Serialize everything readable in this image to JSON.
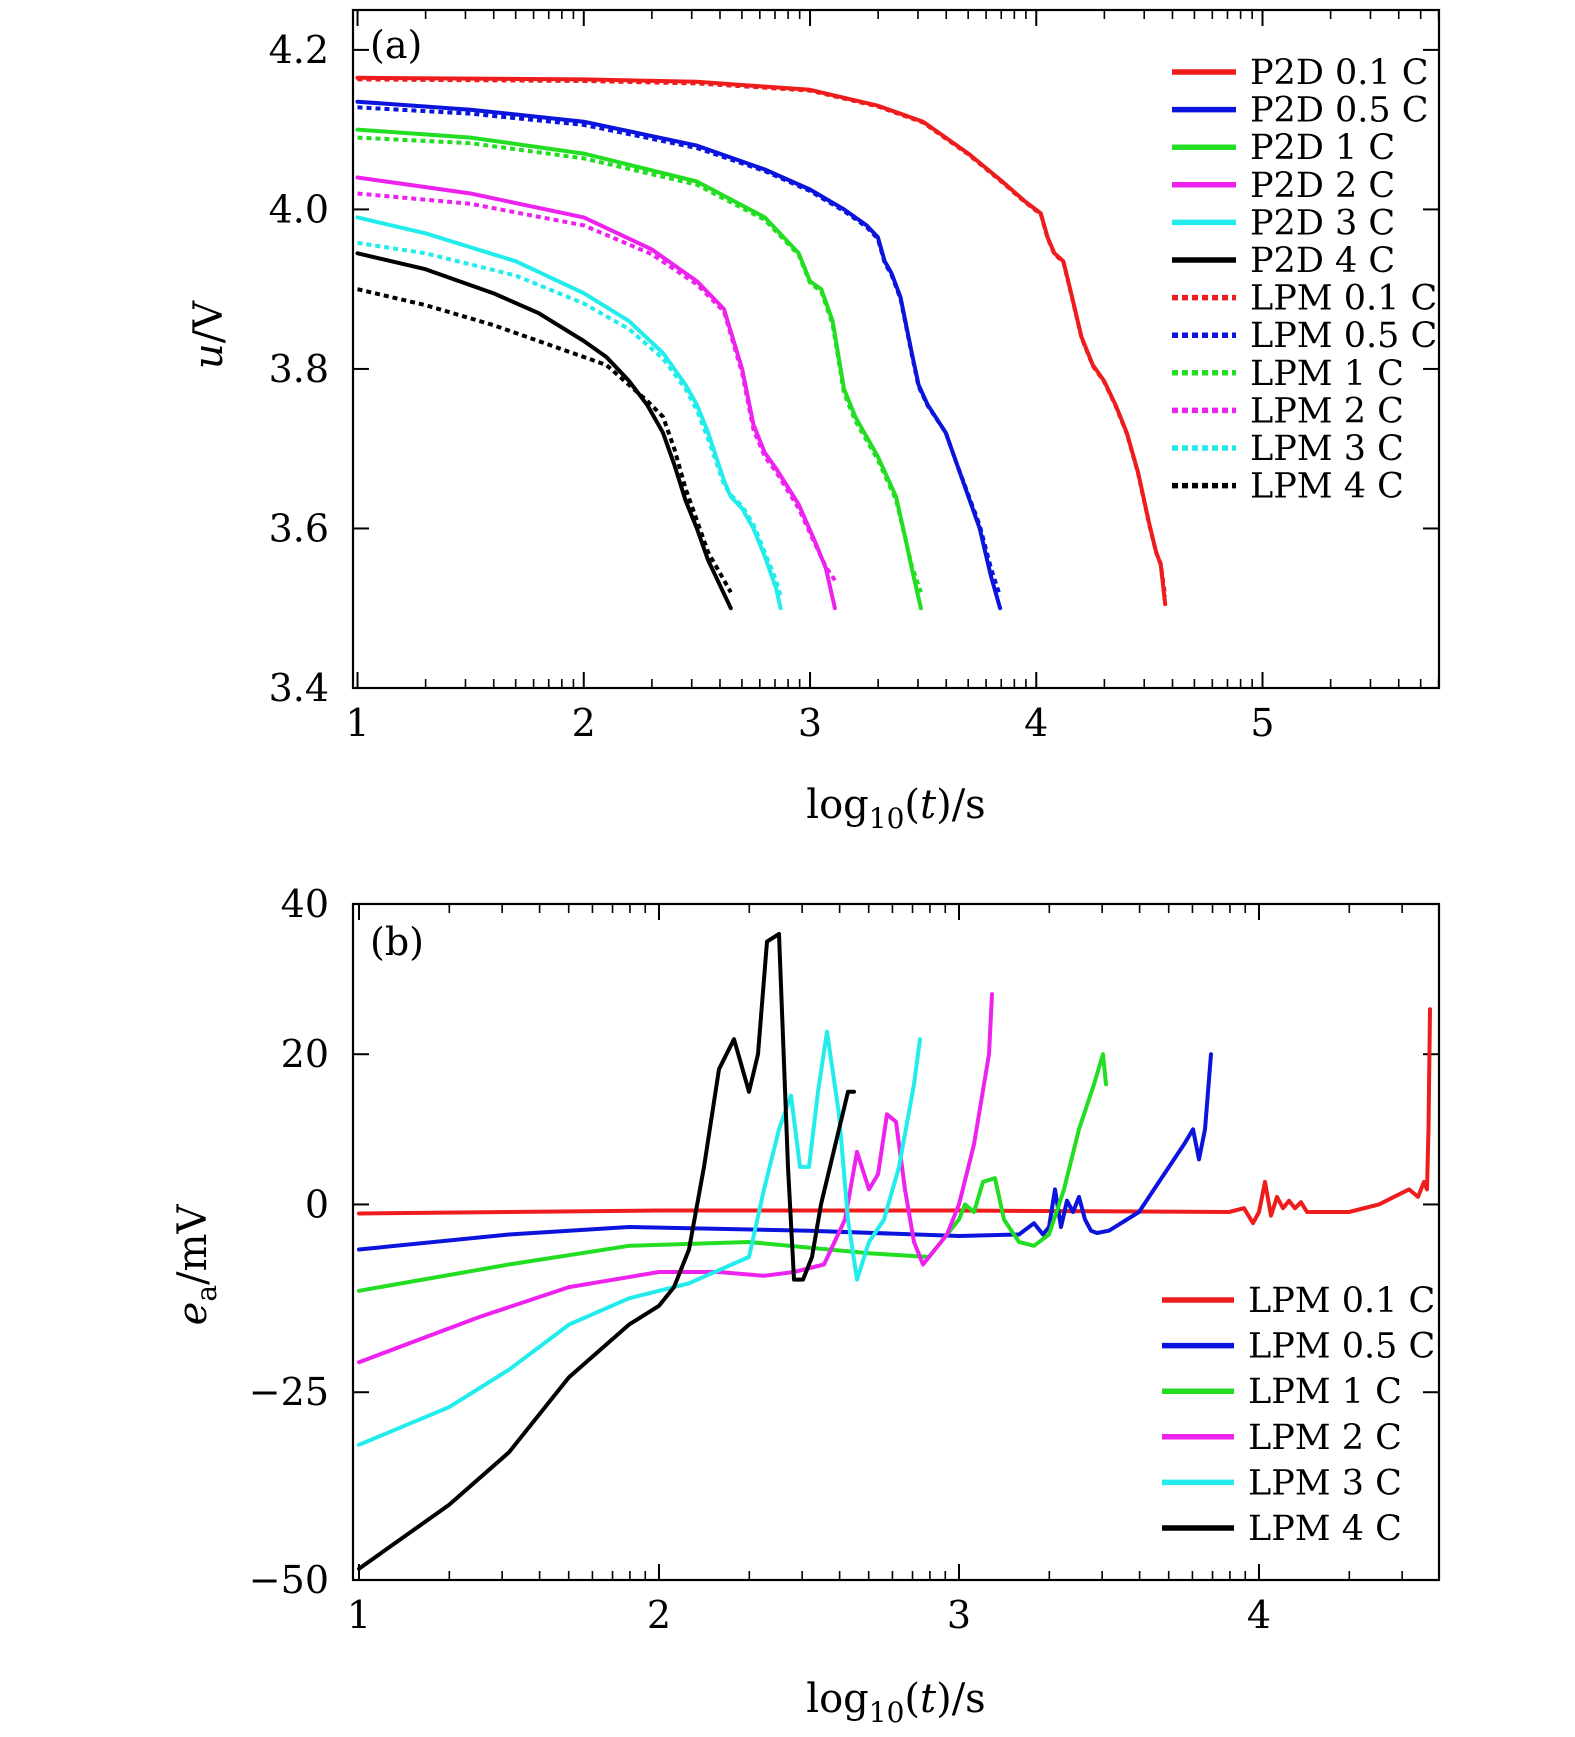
{
  "chart_data": [
    {
      "type": "line",
      "panel_label": "(a)",
      "xlabel": "log10(t)/s",
      "ylabel": "u/V",
      "xlim": [
        0.98,
        5.78
      ],
      "ylim": [
        3.4,
        4.25
      ],
      "xticks": [
        1,
        2,
        3,
        4,
        5
      ],
      "yticks": [
        3.4,
        3.6,
        3.8,
        4.0,
        4.2
      ],
      "grid": false,
      "legend_position": "top-right",
      "series": [
        {
          "name": "P2D 0.1 C",
          "color": "#ee1c1c",
          "style": "solid",
          "x": [
            1.0,
            2.0,
            2.5,
            3.0,
            3.3,
            3.5,
            3.7,
            3.85,
            3.95,
            4.02,
            4.05,
            4.08,
            4.12,
            4.15,
            4.2,
            4.25,
            4.3,
            4.35,
            4.4,
            4.45,
            4.5,
            4.53,
            4.55,
            4.57
          ],
          "y": [
            4.165,
            4.163,
            4.16,
            4.15,
            4.13,
            4.11,
            4.07,
            4.035,
            4.01,
            3.995,
            3.965,
            3.945,
            3.935,
            3.9,
            3.84,
            3.805,
            3.785,
            3.755,
            3.72,
            3.67,
            3.605,
            3.57,
            3.555,
            3.505
          ]
        },
        {
          "name": "P2D 0.5 C",
          "color": "#0a14dc",
          "style": "solid",
          "x": [
            1.0,
            1.5,
            2.0,
            2.5,
            2.8,
            3.0,
            3.15,
            3.25,
            3.3,
            3.33,
            3.36,
            3.4,
            3.45,
            3.48,
            3.52,
            3.6,
            3.65,
            3.7,
            3.75,
            3.8,
            3.84
          ],
          "y": [
            4.135,
            4.125,
            4.11,
            4.08,
            4.05,
            4.025,
            4.0,
            3.98,
            3.965,
            3.935,
            3.92,
            3.89,
            3.82,
            3.78,
            3.755,
            3.72,
            3.68,
            3.64,
            3.6,
            3.54,
            3.5
          ]
        },
        {
          "name": "P2D 1 C",
          "color": "#22dd22",
          "style": "solid",
          "x": [
            1.0,
            1.5,
            2.0,
            2.5,
            2.8,
            2.95,
            3.0,
            3.05,
            3.1,
            3.15,
            3.2,
            3.3,
            3.38,
            3.42,
            3.45,
            3.49
          ],
          "y": [
            4.1,
            4.09,
            4.07,
            4.035,
            3.99,
            3.945,
            3.91,
            3.9,
            3.86,
            3.775,
            3.74,
            3.69,
            3.64,
            3.59,
            3.55,
            3.5
          ]
        },
        {
          "name": "P2D 2 C",
          "color": "#ee22ee",
          "style": "solid",
          "x": [
            1.0,
            1.5,
            2.0,
            2.3,
            2.5,
            2.62,
            2.7,
            2.75,
            2.8,
            2.85,
            2.95,
            3.02,
            3.07,
            3.11
          ],
          "y": [
            4.04,
            4.02,
            3.99,
            3.95,
            3.91,
            3.875,
            3.8,
            3.73,
            3.695,
            3.675,
            3.63,
            3.585,
            3.55,
            3.5
          ]
        },
        {
          "name": "P2D 3 C",
          "color": "#22ecec",
          "style": "solid",
          "x": [
            1.0,
            1.3,
            1.7,
            2.0,
            2.2,
            2.35,
            2.45,
            2.5,
            2.55,
            2.62,
            2.65,
            2.7,
            2.75,
            2.8,
            2.85,
            2.87
          ],
          "y": [
            3.99,
            3.97,
            3.935,
            3.895,
            3.86,
            3.82,
            3.78,
            3.755,
            3.72,
            3.66,
            3.64,
            3.625,
            3.6,
            3.565,
            3.525,
            3.5
          ]
        },
        {
          "name": "P2D 4 C",
          "color": "#000000",
          "style": "solid",
          "x": [
            1.0,
            1.3,
            1.6,
            1.8,
            2.0,
            2.1,
            2.2,
            2.28,
            2.35,
            2.4,
            2.45,
            2.5,
            2.55,
            2.6,
            2.65
          ],
          "y": [
            3.945,
            3.925,
            3.895,
            3.87,
            3.835,
            3.815,
            3.785,
            3.755,
            3.72,
            3.68,
            3.635,
            3.6,
            3.56,
            3.53,
            3.5
          ]
        },
        {
          "name": "LPM 0.1 C",
          "color": "#ee1c1c",
          "style": "dotted",
          "x": [
            1.0,
            2.0,
            2.5,
            3.0,
            3.3,
            3.5,
            3.7,
            3.85,
            3.95,
            4.02,
            4.05,
            4.08,
            4.12,
            4.15,
            4.2,
            4.25,
            4.3,
            4.35,
            4.4,
            4.45,
            4.5,
            4.53,
            4.55,
            4.57
          ],
          "y": [
            4.163,
            4.161,
            4.158,
            4.149,
            4.129,
            4.109,
            4.069,
            4.034,
            4.009,
            3.994,
            3.964,
            3.944,
            3.934,
            3.899,
            3.839,
            3.804,
            3.784,
            3.754,
            3.719,
            3.669,
            3.604,
            3.57,
            3.556,
            3.515
          ]
        },
        {
          "name": "LPM 0.5 C",
          "color": "#0a14dc",
          "style": "dotted",
          "x": [
            1.0,
            1.5,
            2.0,
            2.5,
            2.8,
            3.0,
            3.15,
            3.25,
            3.3,
            3.33,
            3.36,
            3.4,
            3.45,
            3.48,
            3.52,
            3.6,
            3.65,
            3.7,
            3.75,
            3.8,
            3.84
          ],
          "y": [
            4.128,
            4.12,
            4.106,
            4.077,
            4.048,
            4.023,
            3.998,
            3.978,
            3.963,
            3.933,
            3.918,
            3.888,
            3.818,
            3.778,
            3.754,
            3.72,
            3.68,
            3.642,
            3.604,
            3.55,
            3.515
          ]
        },
        {
          "name": "LPM 1 C",
          "color": "#22dd22",
          "style": "dotted",
          "x": [
            1.0,
            1.5,
            2.0,
            2.5,
            2.8,
            2.95,
            3.0,
            3.05,
            3.1,
            3.15,
            3.2,
            3.3,
            3.38,
            3.42,
            3.45,
            3.49
          ],
          "y": [
            4.09,
            4.083,
            4.064,
            4.031,
            3.987,
            3.943,
            3.908,
            3.897,
            3.856,
            3.77,
            3.735,
            3.686,
            3.636,
            3.589,
            3.553,
            3.52
          ]
        },
        {
          "name": "LPM 2 C",
          "color": "#ee22ee",
          "style": "dotted",
          "x": [
            1.0,
            1.5,
            2.0,
            2.3,
            2.5,
            2.62,
            2.7,
            2.75,
            2.8,
            2.85,
            2.95,
            3.02,
            3.07,
            3.11
          ],
          "y": [
            4.02,
            4.007,
            3.98,
            3.944,
            3.906,
            3.872,
            3.795,
            3.724,
            3.69,
            3.671,
            3.625,
            3.582,
            3.552,
            3.535
          ]
        },
        {
          "name": "LPM 3 C",
          "color": "#22ecec",
          "style": "dotted",
          "x": [
            1.0,
            1.3,
            1.7,
            2.0,
            2.2,
            2.35,
            2.45,
            2.5,
            2.55,
            2.62,
            2.65,
            2.7,
            2.75,
            2.8,
            2.85,
            2.87
          ],
          "y": [
            3.958,
            3.945,
            3.917,
            3.882,
            3.85,
            3.813,
            3.775,
            3.748,
            3.712,
            3.655,
            3.642,
            3.628,
            3.605,
            3.57,
            3.535,
            3.515
          ]
        },
        {
          "name": "LPM 4 C",
          "color": "#000000",
          "style": "dotted",
          "x": [
            1.0,
            1.3,
            1.6,
            1.8,
            2.0,
            2.1,
            2.2,
            2.28,
            2.35,
            2.4,
            2.45,
            2.5,
            2.55,
            2.6,
            2.65
          ],
          "y": [
            3.9,
            3.88,
            3.855,
            3.835,
            3.815,
            3.805,
            3.78,
            3.76,
            3.74,
            3.7,
            3.65,
            3.61,
            3.57,
            3.545,
            3.52
          ]
        }
      ]
    },
    {
      "type": "line",
      "panel_label": "(b)",
      "xlabel": "log10(t)/s",
      "ylabel": "ea/mV",
      "xlim": [
        0.98,
        4.6
      ],
      "ylim": [
        -50,
        40
      ],
      "xticks": [
        1,
        2,
        3,
        4
      ],
      "yticks": [
        -50,
        -25,
        0,
        20,
        40
      ],
      "ytick_labels": [
        "−50",
        "−25",
        "0",
        "20",
        "40"
      ],
      "grid": false,
      "legend_position": "bottom-right",
      "series": [
        {
          "name": "LPM 0.1 C",
          "color": "#ee1c1c",
          "x": [
            1.0,
            2.0,
            3.0,
            3.9,
            3.95,
            3.98,
            4.0,
            4.02,
            4.04,
            4.06,
            4.08,
            4.1,
            4.12,
            4.14,
            4.16,
            4.2,
            4.3,
            4.4,
            4.5,
            4.53,
            4.55,
            4.56,
            4.565,
            4.57
          ],
          "y": [
            -1.2,
            -0.8,
            -0.8,
            -1.0,
            -0.5,
            -2.5,
            -1.0,
            3.0,
            -1.5,
            1.0,
            -0.5,
            0.5,
            -0.5,
            0.3,
            -1.0,
            -1.0,
            -1.0,
            0.0,
            2.0,
            1.0,
            3.0,
            2.0,
            10.0,
            26.0
          ]
        },
        {
          "name": "LPM 0.5 C",
          "color": "#0a14dc",
          "x": [
            1.0,
            1.5,
            1.9,
            2.5,
            3.0,
            3.2,
            3.25,
            3.28,
            3.3,
            3.32,
            3.34,
            3.36,
            3.38,
            3.4,
            3.42,
            3.44,
            3.46,
            3.5,
            3.6,
            3.65,
            3.7,
            3.75,
            3.78,
            3.8,
            3.82,
            3.84
          ],
          "y": [
            -6.0,
            -4.0,
            -3.0,
            -3.5,
            -4.2,
            -4.0,
            -2.5,
            -4.0,
            -3.0,
            2.0,
            -3.0,
            0.5,
            -1.0,
            1.0,
            -2.0,
            -3.5,
            -3.8,
            -3.5,
            -1.0,
            2.0,
            5.0,
            8.0,
            10.0,
            6.0,
            10.0,
            20.0
          ]
        },
        {
          "name": "LPM 1 C",
          "color": "#22dd22",
          "x": [
            1.0,
            1.5,
            1.9,
            2.3,
            2.7,
            2.9,
            3.0,
            3.02,
            3.05,
            3.08,
            3.12,
            3.15,
            3.2,
            3.25,
            3.3,
            3.35,
            3.4,
            3.45,
            3.48,
            3.49
          ],
          "y": [
            -11.5,
            -8.0,
            -5.5,
            -5.0,
            -6.5,
            -7.0,
            -2.0,
            0.0,
            -1.0,
            3.0,
            3.5,
            -2.0,
            -5.0,
            -5.5,
            -4.0,
            2.0,
            10.0,
            16.0,
            20.0,
            16.0
          ]
        },
        {
          "name": "LPM 2 C",
          "color": "#ee22ee",
          "x": [
            1.0,
            1.4,
            1.7,
            2.0,
            2.2,
            2.35,
            2.45,
            2.55,
            2.62,
            2.66,
            2.7,
            2.73,
            2.76,
            2.79,
            2.82,
            2.85,
            2.88,
            2.92,
            2.96,
            3.0,
            3.05,
            3.1,
            3.11
          ],
          "y": [
            -21.0,
            -15.0,
            -11.0,
            -9.0,
            -9.0,
            -9.5,
            -9.0,
            -8.0,
            -2.0,
            7.0,
            2.0,
            4.0,
            12.0,
            11.0,
            2.0,
            -5.0,
            -8.0,
            -6.0,
            -4.0,
            0.0,
            8.0,
            20.0,
            28.0
          ]
        },
        {
          "name": "LPM 3 C",
          "color": "#22ecec",
          "x": [
            1.0,
            1.3,
            1.5,
            1.7,
            1.9,
            2.1,
            2.3,
            2.35,
            2.4,
            2.44,
            2.47,
            2.5,
            2.53,
            2.56,
            2.6,
            2.63,
            2.66,
            2.7,
            2.75,
            2.8,
            2.85,
            2.87
          ],
          "y": [
            -32.0,
            -27.0,
            -22.0,
            -16.0,
            -12.5,
            -10.5,
            -7.0,
            2.0,
            10.0,
            14.5,
            5.0,
            5.0,
            15.0,
            23.0,
            12.0,
            -2.0,
            -10.0,
            -5.0,
            -2.0,
            5.0,
            16.0,
            22.0
          ]
        },
        {
          "name": "LPM 4 C",
          "color": "#000000",
          "x": [
            1.0,
            1.3,
            1.5,
            1.7,
            1.9,
            2.0,
            2.05,
            2.1,
            2.15,
            2.2,
            2.25,
            2.3,
            2.33,
            2.36,
            2.4,
            2.43,
            2.45,
            2.48,
            2.51,
            2.54,
            2.57,
            2.6,
            2.63,
            2.65
          ],
          "y": [
            -48.5,
            -40.0,
            -33.0,
            -23.0,
            -16.0,
            -13.5,
            -11.0,
            -6.0,
            5.0,
            18.0,
            22.0,
            15.0,
            20.0,
            35.0,
            36.0,
            5.0,
            -10.0,
            -10.0,
            -7.0,
            0.0,
            5.0,
            10.0,
            15.0,
            15.0
          ]
        }
      ]
    }
  ]
}
